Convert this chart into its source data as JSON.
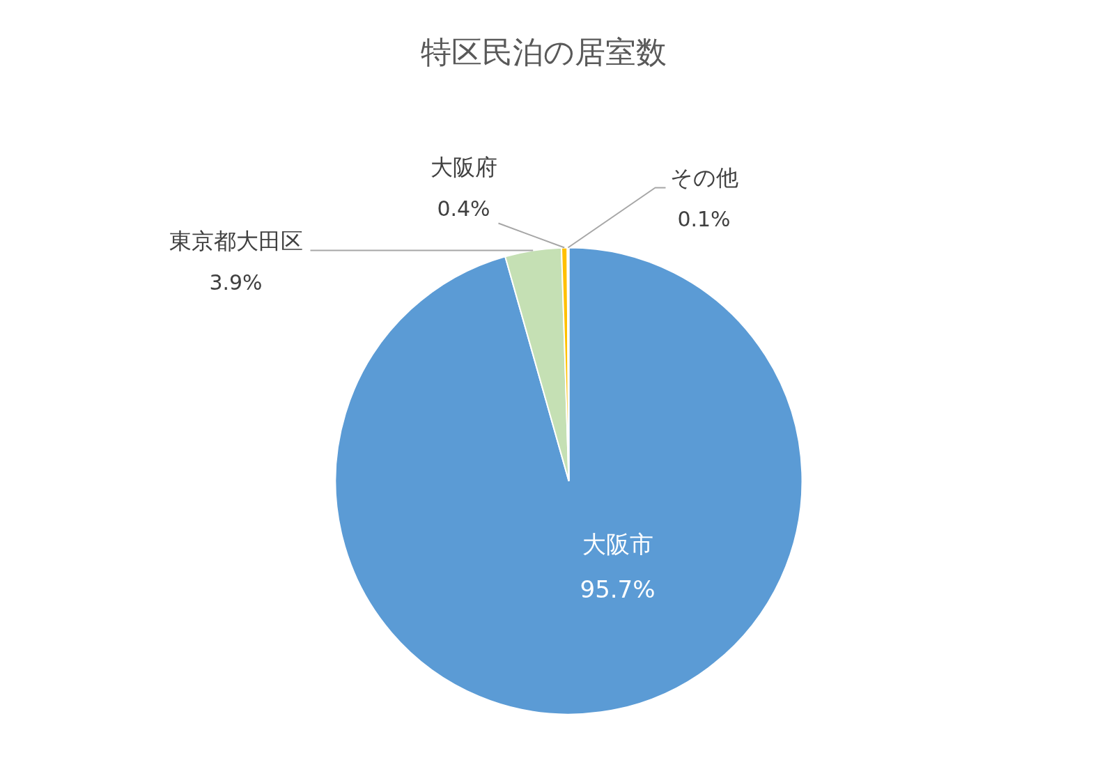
{
  "chart_data": {
    "type": "pie",
    "title": "特区民泊の居室数",
    "categories": [
      "大阪市",
      "東京都大田区",
      "大阪府",
      "その他"
    ],
    "values": [
      95.7,
      3.9,
      0.4,
      0.1
    ],
    "colors": [
      "#5b9bd5",
      "#c5e0b4",
      "#ffc000",
      "#9dc3e6"
    ],
    "value_labels": [
      "95.7%",
      "3.9%",
      "0.4%",
      "0.1%"
    ]
  }
}
